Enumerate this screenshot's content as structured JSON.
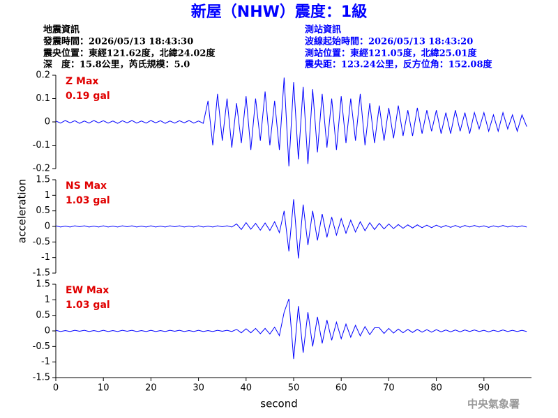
{
  "header": {
    "title": "新屋（NHW）震度：1級",
    "left": [
      "地震資訊",
      "發震時間：2026/05/13 18:43:30",
      "震央位置：東經121.62度，北緯24.02度",
      "深　度：15.8公里，芮氏規模：5.0"
    ],
    "right": [
      "測站資訊",
      "波線起始時間：2026/05/13 18:43:20",
      "測站位置：東經121.05度，北緯25.01度",
      "震央距：123.24公里，反方位角：152.08度"
    ],
    "ylabel": "acceleration",
    "xlabel": "second",
    "footer": "中央氣象署"
  },
  "chart_data": [
    {
      "type": "line",
      "annotation": "Z Max",
      "annotation_value": "0.19 gal",
      "color": "#0000ff",
      "xlim": [
        0,
        100
      ],
      "ylim": [
        -0.2,
        0.2
      ],
      "yticks": [
        -0.2,
        -0.1,
        0,
        0.1,
        0.2
      ],
      "x": [
        0,
        1,
        2,
        3,
        4,
        5,
        6,
        7,
        8,
        9,
        10,
        11,
        12,
        13,
        14,
        15,
        16,
        17,
        18,
        19,
        20,
        21,
        22,
        23,
        24,
        25,
        26,
        27,
        28,
        29,
        30,
        31,
        32,
        33,
        34,
        35,
        36,
        37,
        38,
        39,
        40,
        41,
        42,
        43,
        44,
        45,
        46,
        47,
        48,
        49,
        50,
        51,
        52,
        53,
        54,
        55,
        56,
        57,
        58,
        59,
        60,
        61,
        62,
        63,
        64,
        65,
        66,
        67,
        68,
        69,
        70,
        71,
        72,
        73,
        74,
        75,
        76,
        77,
        78,
        79,
        80,
        81,
        82,
        83,
        84,
        85,
        86,
        87,
        88,
        89,
        90,
        91,
        92,
        93,
        94,
        95,
        96,
        97,
        98,
        99
      ],
      "values": [
        0.004,
        -0.005,
        0.006,
        -0.004,
        0.005,
        -0.006,
        0.004,
        -0.005,
        0.006,
        -0.004,
        0.005,
        -0.005,
        0.004,
        -0.006,
        0.005,
        -0.004,
        0.006,
        -0.005,
        0.004,
        -0.005,
        0.006,
        -0.004,
        0.005,
        -0.006,
        0.004,
        -0.005,
        0.005,
        -0.004,
        0.006,
        -0.005,
        0.004,
        -0.006,
        0.09,
        -0.1,
        0.12,
        -0.08,
        0.1,
        -0.11,
        0.08,
        -0.09,
        0.11,
        -0.12,
        0.1,
        -0.08,
        0.13,
        -0.1,
        0.09,
        -0.12,
        0.19,
        -0.19,
        0.17,
        -0.16,
        0.15,
        -0.18,
        0.14,
        -0.13,
        0.12,
        -0.11,
        0.1,
        -0.12,
        0.11,
        -0.09,
        0.1,
        -0.08,
        0.12,
        -0.1,
        0.08,
        -0.09,
        0.07,
        -0.08,
        0.06,
        -0.07,
        0.07,
        -0.06,
        0.05,
        -0.06,
        0.06,
        -0.05,
        0.05,
        -0.04,
        0.05,
        -0.05,
        0.04,
        -0.05,
        0.05,
        -0.04,
        0.04,
        -0.05,
        0.04,
        -0.03,
        0.04,
        -0.04,
        0.03,
        -0.04,
        0.04,
        -0.03,
        0.03,
        -0.04,
        0.03,
        -0.02
      ]
    },
    {
      "type": "line",
      "annotation": "NS Max",
      "annotation_value": "1.03 gal",
      "color": "#0000ff",
      "xlim": [
        0,
        100
      ],
      "ylim": [
        -1.5,
        1.5
      ],
      "yticks": [
        -1.5,
        -1,
        -0.5,
        0,
        0.5,
        1,
        1.5
      ],
      "x": [
        0,
        1,
        2,
        3,
        4,
        5,
        6,
        7,
        8,
        9,
        10,
        11,
        12,
        13,
        14,
        15,
        16,
        17,
        18,
        19,
        20,
        21,
        22,
        23,
        24,
        25,
        26,
        27,
        28,
        29,
        30,
        31,
        32,
        33,
        34,
        35,
        36,
        37,
        38,
        39,
        40,
        41,
        42,
        43,
        44,
        45,
        46,
        47,
        48,
        49,
        50,
        51,
        52,
        53,
        54,
        55,
        56,
        57,
        58,
        59,
        60,
        61,
        62,
        63,
        64,
        65,
        66,
        67,
        68,
        69,
        70,
        71,
        72,
        73,
        74,
        75,
        76,
        77,
        78,
        79,
        80,
        81,
        82,
        83,
        84,
        85,
        86,
        87,
        88,
        89,
        90,
        91,
        92,
        93,
        94,
        95,
        96,
        97,
        98,
        99
      ],
      "values": [
        0.02,
        -0.02,
        0.01,
        -0.02,
        0.02,
        -0.01,
        0.02,
        -0.02,
        0.01,
        -0.02,
        0.02,
        -0.02,
        0.01,
        -0.02,
        0.02,
        -0.01,
        0.02,
        -0.02,
        0.01,
        -0.02,
        0.02,
        -0.02,
        0.01,
        -0.02,
        0.02,
        -0.01,
        0.02,
        -0.02,
        0.01,
        -0.02,
        0.02,
        -0.02,
        0.01,
        -0.02,
        0.02,
        -0.01,
        0.02,
        -0.02,
        0.08,
        -0.1,
        0.12,
        -0.09,
        0.1,
        -0.12,
        0.11,
        -0.13,
        0.15,
        -0.2,
        0.5,
        -0.8,
        0.87,
        -1.03,
        0.7,
        -0.6,
        0.5,
        -0.45,
        0.4,
        -0.35,
        0.3,
        -0.28,
        0.25,
        -0.22,
        0.2,
        -0.18,
        0.15,
        -0.14,
        0.12,
        -0.1,
        0.1,
        -0.08,
        0.08,
        -0.07,
        0.06,
        -0.06,
        0.05,
        -0.05,
        0.05,
        -0.04,
        0.04,
        -0.04,
        0.04,
        -0.03,
        0.03,
        -0.03,
        0.03,
        -0.03,
        0.03,
        -0.02,
        0.03,
        -0.02,
        0.02,
        -0.03,
        0.02,
        -0.02,
        0.03,
        -0.02,
        0.02,
        -0.02,
        0.02,
        -0.02
      ]
    },
    {
      "type": "line",
      "annotation": "EW Max",
      "annotation_value": "1.03 gal",
      "color": "#0000ff",
      "xlim": [
        0,
        100
      ],
      "ylim": [
        -1.5,
        1.5
      ],
      "yticks": [
        -1.5,
        -1,
        -0.5,
        0,
        0.5,
        1,
        1.5
      ],
      "xticks": [
        0,
        10,
        20,
        30,
        40,
        50,
        60,
        70,
        80,
        90
      ],
      "x": [
        0,
        1,
        2,
        3,
        4,
        5,
        6,
        7,
        8,
        9,
        10,
        11,
        12,
        13,
        14,
        15,
        16,
        17,
        18,
        19,
        20,
        21,
        22,
        23,
        24,
        25,
        26,
        27,
        28,
        29,
        30,
        31,
        32,
        33,
        34,
        35,
        36,
        37,
        38,
        39,
        40,
        41,
        42,
        43,
        44,
        45,
        46,
        47,
        48,
        49,
        50,
        51,
        52,
        53,
        54,
        55,
        56,
        57,
        58,
        59,
        60,
        61,
        62,
        63,
        64,
        65,
        66,
        67,
        68,
        69,
        70,
        71,
        72,
        73,
        74,
        75,
        76,
        77,
        78,
        79,
        80,
        81,
        82,
        83,
        84,
        85,
        86,
        87,
        88,
        89,
        90,
        91,
        92,
        93,
        94,
        95,
        96,
        97,
        98,
        99
      ],
      "values": [
        0.02,
        -0.02,
        0.01,
        -0.02,
        0.02,
        -0.01,
        0.02,
        -0.02,
        0.01,
        -0.02,
        0.02,
        -0.02,
        0.01,
        -0.02,
        0.02,
        -0.01,
        0.02,
        -0.02,
        0.01,
        -0.02,
        0.02,
        -0.02,
        0.01,
        -0.02,
        0.02,
        -0.01,
        0.02,
        -0.02,
        0.01,
        -0.02,
        0.02,
        -0.02,
        0.01,
        -0.02,
        0.02,
        -0.01,
        0.02,
        -0.02,
        0.05,
        -0.06,
        0.07,
        -0.06,
        0.08,
        -0.09,
        0.08,
        -0.1,
        0.12,
        -0.15,
        0.6,
        1.03,
        -0.9,
        0.8,
        -0.7,
        0.6,
        -0.5,
        0.45,
        -0.4,
        0.35,
        -0.3,
        0.28,
        -0.25,
        0.22,
        -0.2,
        0.18,
        -0.16,
        0.14,
        -0.12,
        0.1,
        0.1,
        -0.08,
        0.08,
        -0.07,
        0.06,
        -0.06,
        0.05,
        -0.05,
        0.05,
        -0.04,
        0.04,
        -0.04,
        0.04,
        -0.03,
        0.03,
        -0.03,
        0.03,
        -0.03,
        0.03,
        -0.02,
        0.03,
        -0.02,
        0.02,
        -0.03,
        0.02,
        -0.02,
        0.03,
        -0.02,
        0.02,
        -0.02,
        0.02,
        -0.02
      ]
    }
  ]
}
